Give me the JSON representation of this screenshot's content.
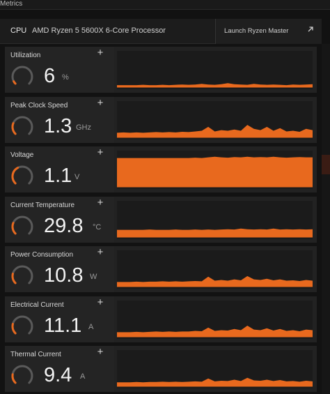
{
  "window": {
    "title": "Metrics"
  },
  "cpu": {
    "label": "CPU",
    "name": "AMD Ryzen 5 5600X 6-Core Processor",
    "launch_label": "Launch Ryzen Master"
  },
  "colors": {
    "accent": "#e8691e",
    "card_bg": "#222222",
    "graph_bg": "#1b1b1b",
    "gauge_track": "#5a5a5a"
  },
  "metrics": [
    {
      "id": "utilization",
      "name": "Utilization",
      "value": "6",
      "unit": "%",
      "gauge_level": 0.06,
      "history": [
        0.04,
        0.04,
        0.04,
        0.04,
        0.05,
        0.04,
        0.04,
        0.05,
        0.04,
        0.05,
        0.06,
        0.05,
        0.06,
        0.08,
        0.06,
        0.05,
        0.07,
        0.1,
        0.07,
        0.06,
        0.05,
        0.08,
        0.06,
        0.05,
        0.06,
        0.05,
        0.04,
        0.06,
        0.05,
        0.06,
        0.07
      ]
    },
    {
      "id": "peak-clock",
      "name": "Peak Clock Speed",
      "value": "1.3",
      "unit": "GHz",
      "gauge_level": 0.25,
      "history": [
        0.12,
        0.13,
        0.12,
        0.13,
        0.12,
        0.13,
        0.14,
        0.13,
        0.14,
        0.13,
        0.15,
        0.14,
        0.16,
        0.18,
        0.3,
        0.16,
        0.2,
        0.18,
        0.22,
        0.18,
        0.36,
        0.24,
        0.2,
        0.3,
        0.18,
        0.26,
        0.16,
        0.18,
        0.15,
        0.24,
        0.2
      ]
    },
    {
      "id": "voltage",
      "name": "Voltage",
      "value": "1.1",
      "unit": "V",
      "gauge_level": 0.4,
      "history": [
        0.86,
        0.86,
        0.86,
        0.86,
        0.86,
        0.86,
        0.86,
        0.86,
        0.86,
        0.86,
        0.86,
        0.86,
        0.87,
        0.86,
        0.88,
        0.9,
        0.88,
        0.87,
        0.89,
        0.88,
        0.9,
        0.88,
        0.89,
        0.88,
        0.9,
        0.88,
        0.87,
        0.88,
        0.89,
        0.88,
        0.88
      ]
    },
    {
      "id": "temperature",
      "name": "Current Temperature",
      "value": "29.8",
      "unit": "°C",
      "gauge_level": 0.25,
      "history": [
        0.2,
        0.2,
        0.2,
        0.2,
        0.2,
        0.21,
        0.2,
        0.2,
        0.2,
        0.21,
        0.2,
        0.2,
        0.21,
        0.2,
        0.21,
        0.2,
        0.21,
        0.22,
        0.21,
        0.24,
        0.22,
        0.21,
        0.22,
        0.21,
        0.24,
        0.21,
        0.22,
        0.21,
        0.22,
        0.21,
        0.22
      ]
    },
    {
      "id": "power",
      "name": "Power Consumption",
      "value": "10.8",
      "unit": "W",
      "gauge_level": 0.22,
      "history": [
        0.12,
        0.12,
        0.12,
        0.13,
        0.12,
        0.13,
        0.13,
        0.14,
        0.13,
        0.14,
        0.13,
        0.14,
        0.15,
        0.14,
        0.28,
        0.16,
        0.18,
        0.16,
        0.2,
        0.17,
        0.3,
        0.2,
        0.18,
        0.22,
        0.17,
        0.2,
        0.16,
        0.17,
        0.15,
        0.18,
        0.16
      ]
    },
    {
      "id": "electrical-current",
      "name": "Electrical Current",
      "value": "11.1",
      "unit": "A",
      "gauge_level": 0.22,
      "history": [
        0.12,
        0.12,
        0.12,
        0.13,
        0.12,
        0.13,
        0.14,
        0.13,
        0.14,
        0.13,
        0.14,
        0.14,
        0.16,
        0.15,
        0.26,
        0.16,
        0.18,
        0.17,
        0.22,
        0.18,
        0.32,
        0.2,
        0.18,
        0.24,
        0.17,
        0.22,
        0.16,
        0.18,
        0.15,
        0.2,
        0.18
      ]
    },
    {
      "id": "thermal-current",
      "name": "Thermal Current",
      "value": "9.4",
      "unit": "A",
      "gauge_level": 0.2,
      "history": [
        0.1,
        0.1,
        0.1,
        0.11,
        0.1,
        0.11,
        0.11,
        0.12,
        0.11,
        0.12,
        0.11,
        0.12,
        0.13,
        0.12,
        0.22,
        0.13,
        0.15,
        0.14,
        0.18,
        0.14,
        0.24,
        0.16,
        0.15,
        0.18,
        0.14,
        0.17,
        0.13,
        0.14,
        0.12,
        0.15,
        0.13
      ]
    }
  ]
}
